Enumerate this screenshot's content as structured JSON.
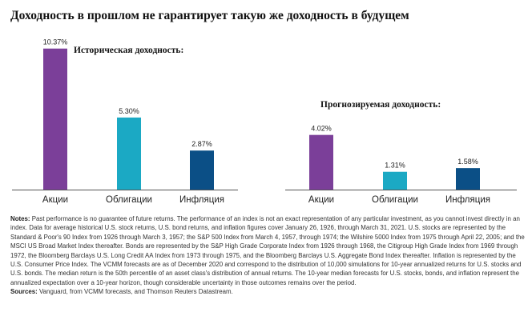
{
  "title": "Доходность в прошлом не гарантирует такую же доходность в будущем",
  "chart_data": [
    {
      "type": "bar",
      "title": "Историческая доходность:",
      "categories": [
        "Акции",
        "Облигации",
        "Инфляция"
      ],
      "values": [
        10.37,
        5.3,
        2.87
      ],
      "labels": [
        "10.37%",
        "5.30%",
        "2.87%"
      ],
      "colors": [
        "#7b3f99",
        "#1ba9c4",
        "#0b4f86"
      ],
      "ylim": [
        0,
        11
      ]
    },
    {
      "type": "bar",
      "title": "Прогнозируемая доходность:",
      "categories": [
        "Акции",
        "Облигации",
        "Инфляция"
      ],
      "values": [
        4.02,
        1.31,
        1.58
      ],
      "labels": [
        "4.02%",
        "1.31%",
        "1.58%"
      ],
      "colors": [
        "#7b3f99",
        "#1ba9c4",
        "#0b4f86"
      ],
      "ylim": [
        0,
        11
      ]
    }
  ],
  "notes": {
    "label": "Notes:",
    "text": "Past performance is no guarantee of future returns. The performance of an index is not an exact representation of any particular investment, as you cannot invest directly in an index. Data for average historical U.S. stock returns, U.S. bond returns, and inflation figures cover January 26, 1926, through March 31, 2021. U.S. stocks are represented by the Standard & Poor's 90 Index from 1926 through March 3, 1957; the S&P 500 Index from March 4, 1957, through 1974; the Wilshire 5000 Index from 1975 through April 22, 2005; and the MSCI US Broad Market Index thereafter. Bonds are represented by the S&P High Grade Corporate Index from 1926 through 1968, the Citigroup High Grade Index from 1969 through 1972, the Bloomberg Barclays U.S. Long Credit AA Index from 1973 through 1975, and the Bloomberg Barclays U.S. Aggregate Bond Index thereafter. Inflation is represented by the U.S. Consumer Price Index. The VCMM forecasts are as of December 2020 and correspond to the distribution of 10,000 simulations for 10-year annualized returns for U.S. stocks and U.S. bonds. The median return is the 50th percentile of an asset class's distribution of annual returns. The 10-year median forecasts for U.S. stocks, bonds, and inflation represent the annualized expectation over a 10-year horizon, though considerable uncertainty in those outcomes remains over the period.",
    "sources_label": "Sources:",
    "sources_text": "Vanguard, from VCMM forecasts, and Thomson Reuters Datastream."
  }
}
